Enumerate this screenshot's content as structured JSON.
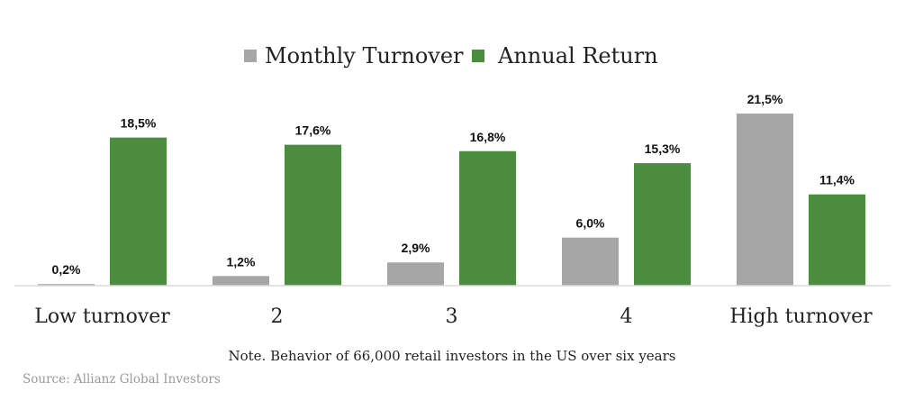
{
  "chart_data": {
    "type": "bar",
    "categories": [
      "Low turnover",
      "2",
      "3",
      "4",
      "High turnover"
    ],
    "series": [
      {
        "name": "Monthly Turnover",
        "values": [
          0.2,
          1.2,
          2.9,
          6.0,
          21.5
        ],
        "labels": [
          "0,2%",
          "1,2%",
          "2,9%",
          "6,0%",
          "21,5%"
        ],
        "color": "#a6a6a6"
      },
      {
        "name": "Annual Return",
        "values": [
          18.5,
          17.6,
          16.8,
          15.3,
          11.4
        ],
        "labels": [
          "18,5%",
          "17,6%",
          "16,8%",
          "15,3%",
          "11,4%"
        ],
        "color": "#4b8c3e"
      }
    ],
    "title": "",
    "xlabel": "",
    "ylabel": "",
    "ylim": [
      0,
      21.5
    ],
    "grid": false,
    "legend": "top-center"
  },
  "note": "Note. Behavior of 66,000 retail investors in the US over six years",
  "source": "Source: Allianz Global Investors"
}
